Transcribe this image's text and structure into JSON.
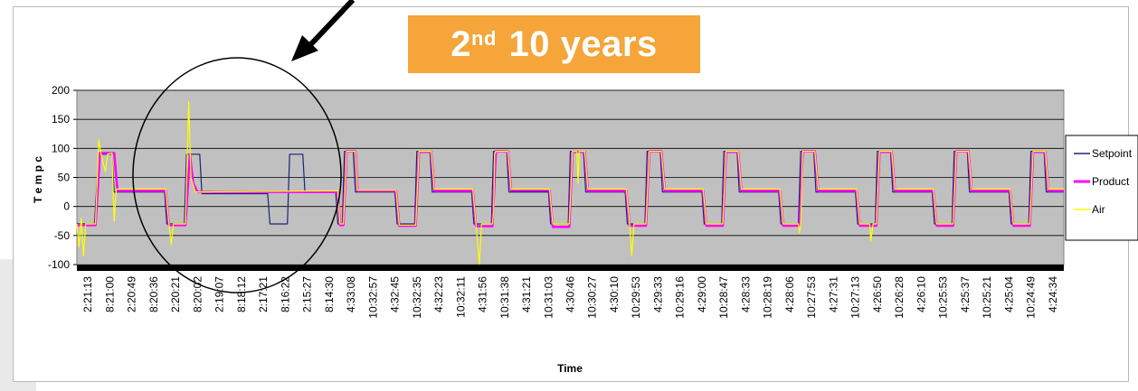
{
  "title": {
    "main": "10 years",
    "ordinal": "2",
    "suffix": "nd"
  },
  "chart_data": {
    "type": "line",
    "xlabel": "Time",
    "ylabel": "T e m p  c",
    "ylim": [
      -100,
      200
    ],
    "yticks": [
      -100,
      -50,
      0,
      50,
      100,
      150,
      200
    ],
    "grid": true,
    "legend_position": "right",
    "x_tick_labels": [
      "2:21:13",
      "8:21:00",
      "2:20:49",
      "8:20:36",
      "2:20:21",
      "8:20:02",
      "2:19:07",
      "8:18:12",
      "2:17:21",
      "8:16:22",
      "2:15:27",
      "8:14:30",
      "4:33:08",
      "10:32:57",
      "4:32:45",
      "10:32:35",
      "4:32:23",
      "10:32:11",
      "4:31:56",
      "10:31:38",
      "4:31:21",
      "10:31:03",
      "4:30:46",
      "10:30:27",
      "4:30:10",
      "10:29:53",
      "4:29:33",
      "10:29:16",
      "4:29:00",
      "10:28:47",
      "4:28:33",
      "10:28:19",
      "4:28:06",
      "10:27:53",
      "4:27:31",
      "10:27:13",
      "4:26:50",
      "10:26:28",
      "4:26:10",
      "10:25:53",
      "4:25:37",
      "10:25:21",
      "4:25:04",
      "10:24:49",
      "4:24:34"
    ],
    "x_range": [
      0,
      45
    ],
    "series": [
      {
        "name": "Setpoint",
        "color": "#1a237e",
        "points": [
          [
            0,
            -30
          ],
          [
            0.8,
            -30
          ],
          [
            1.0,
            90
          ],
          [
            1.6,
            90
          ],
          [
            1.7,
            25
          ],
          [
            4.0,
            25
          ],
          [
            4.1,
            -30
          ],
          [
            4.9,
            -30
          ],
          [
            5.0,
            90
          ],
          [
            5.6,
            90
          ],
          [
            5.7,
            22
          ],
          [
            8.7,
            22
          ],
          [
            8.8,
            -30
          ],
          [
            9.6,
            -30
          ],
          [
            9.7,
            90
          ],
          [
            10.3,
            90
          ],
          [
            10.4,
            25
          ],
          [
            11.8,
            25
          ],
          [
            11.9,
            -30
          ],
          [
            12.1,
            -30
          ],
          [
            12.2,
            95
          ],
          [
            12.6,
            95
          ],
          [
            12.7,
            25
          ],
          [
            14.5,
            25
          ],
          [
            14.6,
            -30
          ],
          [
            15.4,
            -30
          ],
          [
            15.5,
            95
          ],
          [
            16.1,
            95
          ],
          [
            16.2,
            25
          ],
          [
            18.0,
            25
          ],
          [
            18.1,
            -30
          ],
          [
            18.9,
            -30
          ],
          [
            19.0,
            95
          ],
          [
            19.6,
            95
          ],
          [
            19.7,
            25
          ],
          [
            21.5,
            25
          ],
          [
            21.6,
            -30
          ],
          [
            22.4,
            -30
          ],
          [
            22.5,
            95
          ],
          [
            23.1,
            95
          ],
          [
            23.2,
            25
          ],
          [
            25.0,
            25
          ],
          [
            25.1,
            -30
          ],
          [
            25.9,
            -30
          ],
          [
            26.0,
            95
          ],
          [
            26.6,
            95
          ],
          [
            26.7,
            25
          ],
          [
            28.5,
            25
          ],
          [
            28.6,
            -30
          ],
          [
            29.4,
            -30
          ],
          [
            29.5,
            95
          ],
          [
            30.1,
            95
          ],
          [
            30.2,
            25
          ],
          [
            32.0,
            25
          ],
          [
            32.1,
            -30
          ],
          [
            32.9,
            -30
          ],
          [
            33.0,
            95
          ],
          [
            33.6,
            95
          ],
          [
            33.7,
            25
          ],
          [
            35.5,
            25
          ],
          [
            35.6,
            -30
          ],
          [
            36.4,
            -30
          ],
          [
            36.5,
            95
          ],
          [
            37.1,
            95
          ],
          [
            37.2,
            25
          ],
          [
            39.0,
            25
          ],
          [
            39.1,
            -30
          ],
          [
            39.9,
            -30
          ],
          [
            40.0,
            95
          ],
          [
            40.6,
            95
          ],
          [
            40.7,
            25
          ],
          [
            42.5,
            25
          ],
          [
            42.6,
            -30
          ],
          [
            43.4,
            -30
          ],
          [
            43.5,
            95
          ],
          [
            44.1,
            95
          ],
          [
            44.2,
            25
          ],
          [
            45,
            25
          ]
        ]
      },
      {
        "name": "Product",
        "color": "#ff00ff",
        "points": [
          [
            0,
            -32
          ],
          [
            0.85,
            -32
          ],
          [
            1.05,
            92
          ],
          [
            1.7,
            92
          ],
          [
            1.85,
            27
          ],
          [
            4.05,
            27
          ],
          [
            4.2,
            -32
          ],
          [
            4.95,
            -32
          ],
          [
            5.15,
            90
          ],
          [
            5.3,
            40
          ],
          [
            5.5,
            25
          ],
          [
            11.9,
            25
          ],
          [
            12.0,
            -32
          ],
          [
            12.15,
            -32
          ],
          [
            12.3,
            95
          ],
          [
            12.7,
            95
          ],
          [
            12.8,
            27
          ],
          [
            14.55,
            27
          ],
          [
            14.7,
            -33
          ],
          [
            15.45,
            -33
          ],
          [
            15.6,
            94
          ],
          [
            16.15,
            94
          ],
          [
            16.3,
            27
          ],
          [
            18.05,
            27
          ],
          [
            18.2,
            -34
          ],
          [
            18.95,
            -34
          ],
          [
            19.1,
            95
          ],
          [
            19.65,
            95
          ],
          [
            19.8,
            28
          ],
          [
            21.55,
            28
          ],
          [
            21.7,
            -35
          ],
          [
            22.45,
            -35
          ],
          [
            22.6,
            94
          ],
          [
            23.15,
            94
          ],
          [
            23.3,
            27
          ],
          [
            25.05,
            27
          ],
          [
            25.2,
            -33
          ],
          [
            25.95,
            -33
          ],
          [
            26.1,
            95
          ],
          [
            26.65,
            95
          ],
          [
            26.8,
            27
          ],
          [
            28.55,
            27
          ],
          [
            28.7,
            -33
          ],
          [
            29.45,
            -33
          ],
          [
            29.6,
            94
          ],
          [
            30.15,
            94
          ],
          [
            30.3,
            27
          ],
          [
            32.05,
            27
          ],
          [
            32.2,
            -33
          ],
          [
            32.95,
            -33
          ],
          [
            33.1,
            95
          ],
          [
            33.65,
            95
          ],
          [
            33.8,
            27
          ],
          [
            35.55,
            27
          ],
          [
            35.7,
            -33
          ],
          [
            36.45,
            -33
          ],
          [
            36.6,
            94
          ],
          [
            37.15,
            94
          ],
          [
            37.3,
            27
          ],
          [
            39.05,
            27
          ],
          [
            39.2,
            -33
          ],
          [
            39.95,
            -33
          ],
          [
            40.1,
            95
          ],
          [
            40.65,
            95
          ],
          [
            40.8,
            27
          ],
          [
            42.55,
            27
          ],
          [
            42.7,
            -33
          ],
          [
            43.45,
            -33
          ],
          [
            43.6,
            94
          ],
          [
            44.15,
            94
          ],
          [
            44.3,
            27
          ],
          [
            45,
            27
          ]
        ]
      },
      {
        "name": "Air",
        "color": "#ffff00",
        "points": [
          [
            0,
            -30
          ],
          [
            0.1,
            -70
          ],
          [
            0.2,
            -20
          ],
          [
            0.3,
            -85
          ],
          [
            0.4,
            -30
          ],
          [
            0.85,
            -30
          ],
          [
            1.0,
            115
          ],
          [
            1.1,
            90
          ],
          [
            1.3,
            60
          ],
          [
            1.4,
            90
          ],
          [
            1.6,
            92
          ],
          [
            1.7,
            -25
          ],
          [
            1.8,
            30
          ],
          [
            4.05,
            30
          ],
          [
            4.2,
            -30
          ],
          [
            4.3,
            -65
          ],
          [
            4.4,
            -30
          ],
          [
            4.95,
            -30
          ],
          [
            5.1,
            180
          ],
          [
            5.2,
            50
          ],
          [
            5.4,
            25
          ],
          [
            11.9,
            27
          ],
          [
            12.0,
            -30
          ],
          [
            12.15,
            -30
          ],
          [
            12.3,
            95
          ],
          [
            12.7,
            95
          ],
          [
            12.8,
            28
          ],
          [
            14.55,
            28
          ],
          [
            14.7,
            -32
          ],
          [
            15.45,
            -32
          ],
          [
            15.6,
            95
          ],
          [
            16.15,
            95
          ],
          [
            16.3,
            30
          ],
          [
            18.05,
            30
          ],
          [
            18.2,
            -30
          ],
          [
            18.35,
            -100
          ],
          [
            18.45,
            -30
          ],
          [
            18.95,
            -30
          ],
          [
            19.0,
            -10
          ],
          [
            19.05,
            90
          ],
          [
            19.1,
            95
          ],
          [
            19.65,
            95
          ],
          [
            19.8,
            30
          ],
          [
            21.55,
            30
          ],
          [
            21.7,
            -30
          ],
          [
            22.45,
            -30
          ],
          [
            22.6,
            95
          ],
          [
            22.8,
            95
          ],
          [
            22.85,
            40
          ],
          [
            22.9,
            95
          ],
          [
            23.15,
            95
          ],
          [
            23.3,
            30
          ],
          [
            25.05,
            30
          ],
          [
            25.2,
            -30
          ],
          [
            25.3,
            -85
          ],
          [
            25.4,
            -30
          ],
          [
            25.95,
            -30
          ],
          [
            26.1,
            95
          ],
          [
            26.65,
            95
          ],
          [
            26.8,
            30
          ],
          [
            28.55,
            30
          ],
          [
            28.7,
            -30
          ],
          [
            29.45,
            -30
          ],
          [
            29.6,
            95
          ],
          [
            30.15,
            95
          ],
          [
            30.3,
            30
          ],
          [
            32.05,
            30
          ],
          [
            32.2,
            -30
          ],
          [
            32.9,
            -30
          ],
          [
            32.95,
            -45
          ],
          [
            33.0,
            -30
          ],
          [
            33.1,
            95
          ],
          [
            33.65,
            95
          ],
          [
            33.8,
            30
          ],
          [
            35.55,
            30
          ],
          [
            35.7,
            -30
          ],
          [
            36.15,
            -30
          ],
          [
            36.2,
            -60
          ],
          [
            36.3,
            -30
          ],
          [
            36.45,
            -30
          ],
          [
            36.6,
            95
          ],
          [
            37.15,
            95
          ],
          [
            37.3,
            30
          ],
          [
            39.05,
            30
          ],
          [
            39.2,
            -30
          ],
          [
            39.95,
            -30
          ],
          [
            40.1,
            95
          ],
          [
            40.65,
            95
          ],
          [
            40.8,
            30
          ],
          [
            42.55,
            30
          ],
          [
            42.7,
            -30
          ],
          [
            43.45,
            -30
          ],
          [
            43.6,
            95
          ],
          [
            44.15,
            95
          ],
          [
            44.3,
            30
          ],
          [
            45,
            30
          ]
        ]
      }
    ]
  }
}
